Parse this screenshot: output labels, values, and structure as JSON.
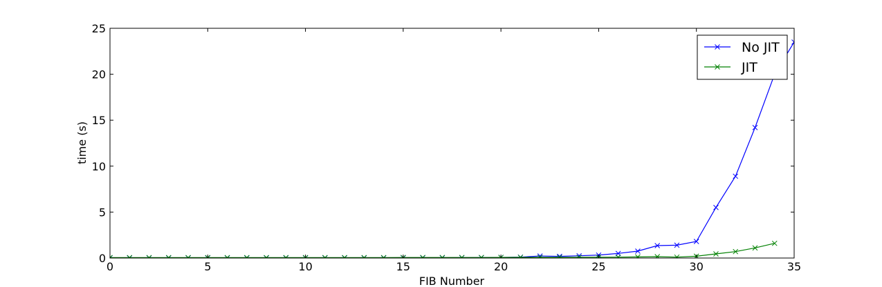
{
  "chart_data": {
    "type": "line",
    "title": "",
    "xlabel": "FIB Number",
    "ylabel": "time (s)",
    "xlim": [
      0,
      35
    ],
    "ylim": [
      0,
      25
    ],
    "xticks": [
      "0",
      "5",
      "10",
      "15",
      "20",
      "25",
      "30",
      "35"
    ],
    "yticks": [
      "0",
      "5",
      "10",
      "15",
      "20",
      "25"
    ],
    "grid": false,
    "legend_position": "top-right",
    "series": [
      {
        "name": "No JIT",
        "color": "#0000ff",
        "marker": "x",
        "x": [
          0,
          1,
          2,
          3,
          4,
          5,
          6,
          7,
          8,
          9,
          10,
          11,
          12,
          13,
          14,
          15,
          16,
          17,
          18,
          19,
          20,
          21,
          22,
          23,
          24,
          25,
          26,
          27,
          28,
          29,
          30,
          31,
          32,
          33,
          34,
          35
        ],
        "y": [
          0.02,
          0.02,
          0.02,
          0.02,
          0.02,
          0.02,
          0.02,
          0.02,
          0.02,
          0.02,
          0.02,
          0.02,
          0.02,
          0.02,
          0.02,
          0.03,
          0.03,
          0.03,
          0.04,
          0.05,
          0.07,
          0.1,
          0.22,
          0.18,
          0.25,
          0.32,
          0.5,
          0.75,
          1.35,
          1.4,
          1.8,
          5.5,
          8.9,
          14.2,
          20.0,
          23.5
        ]
      },
      {
        "name": "JIT",
        "color": "#008000",
        "marker": "x",
        "x": [
          0,
          1,
          2,
          3,
          4,
          5,
          6,
          7,
          8,
          9,
          10,
          11,
          12,
          13,
          14,
          15,
          16,
          17,
          18,
          19,
          20,
          21,
          22,
          23,
          24,
          25,
          26,
          27,
          28,
          29,
          30,
          31,
          32,
          33,
          34
        ],
        "y": [
          0.05,
          0.05,
          0.05,
          0.05,
          0.05,
          0.05,
          0.05,
          0.05,
          0.05,
          0.05,
          0.05,
          0.05,
          0.05,
          0.05,
          0.05,
          0.06,
          0.06,
          0.06,
          0.06,
          0.06,
          0.07,
          0.08,
          0.08,
          0.08,
          0.09,
          0.09,
          0.1,
          0.12,
          0.15,
          0.1,
          0.2,
          0.45,
          0.7,
          1.1,
          1.6
        ]
      }
    ]
  }
}
